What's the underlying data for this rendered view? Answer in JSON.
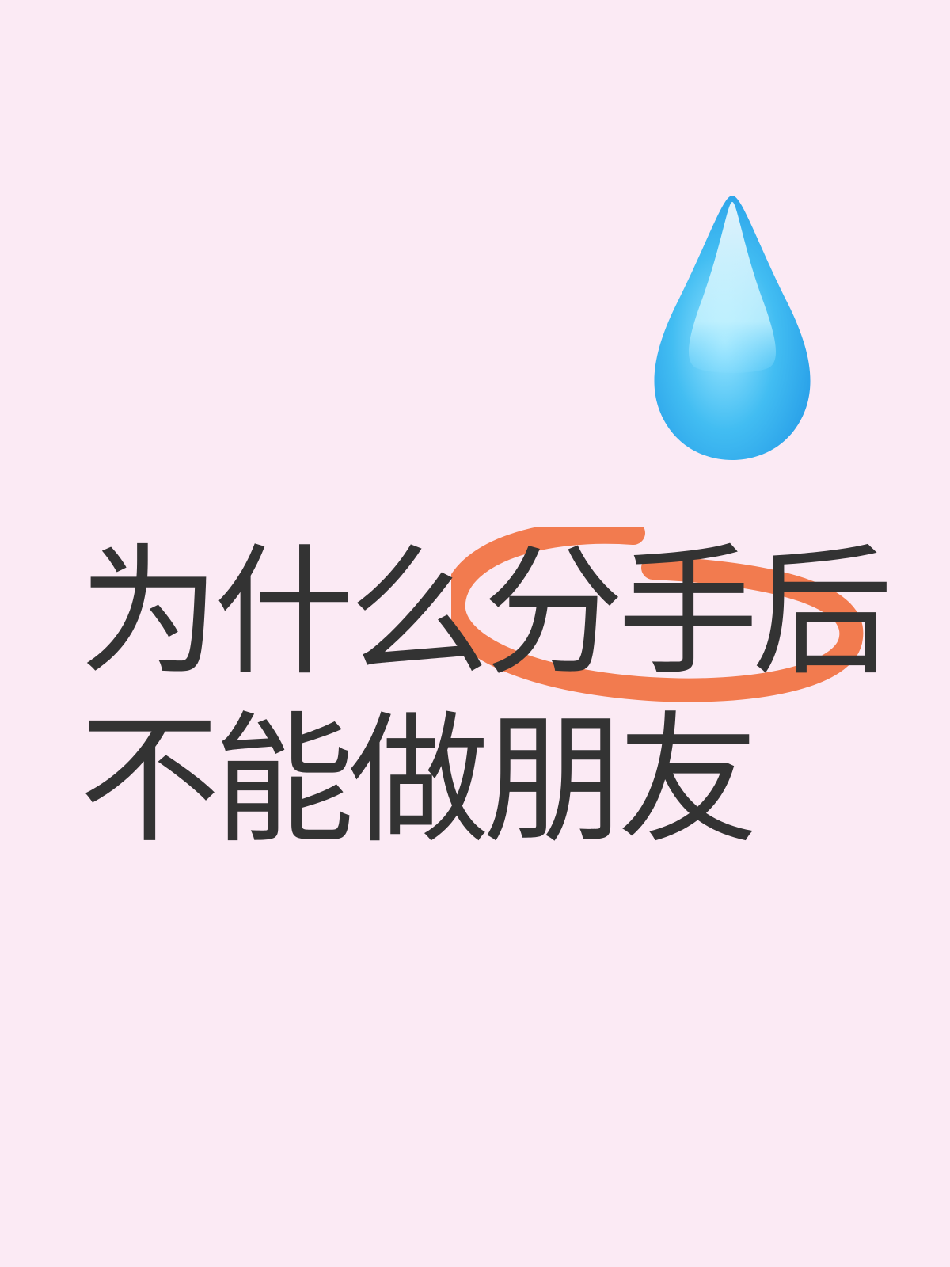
{
  "headline": {
    "line1": "为什么分手后",
    "line2": "不能做朋友"
  },
  "icon": "droplet-icon",
  "colors": {
    "background": "#FBEAF4",
    "text": "#333333",
    "accent": "#F27B4F",
    "drop_light": "#CFF6FF",
    "drop_mid": "#42BDF2",
    "drop_dark": "#1A8FE3"
  }
}
